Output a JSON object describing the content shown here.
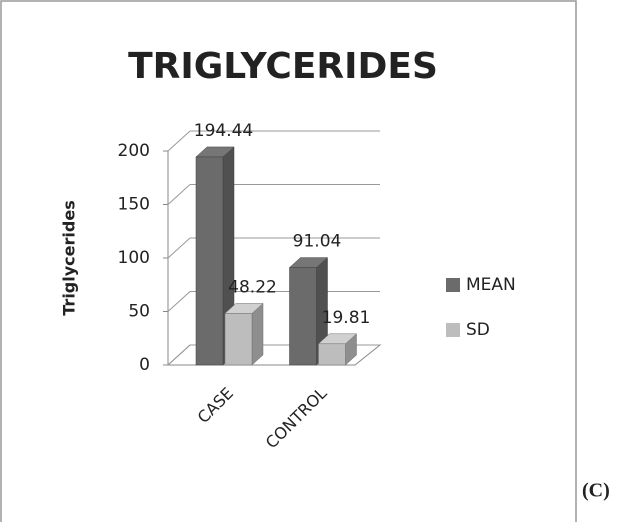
{
  "chart_data": {
    "type": "bar3d",
    "title": "TRIGLYCERIDES",
    "y_label": "Triglycerides",
    "categories": [
      "CASE",
      "CONTROL"
    ],
    "series": [
      {
        "name": "MEAN",
        "color": "#6b6b6b",
        "values": [
          194.44,
          91.04
        ]
      },
      {
        "name": "SD",
        "color": "#bdbdbd",
        "values": [
          48.22,
          19.81
        ]
      }
    ],
    "ylim": [
      0,
      200
    ],
    "yticks": [
      0,
      50,
      100,
      150,
      200
    ],
    "grid": true,
    "legend": "right"
  },
  "panel_label": "(C)"
}
